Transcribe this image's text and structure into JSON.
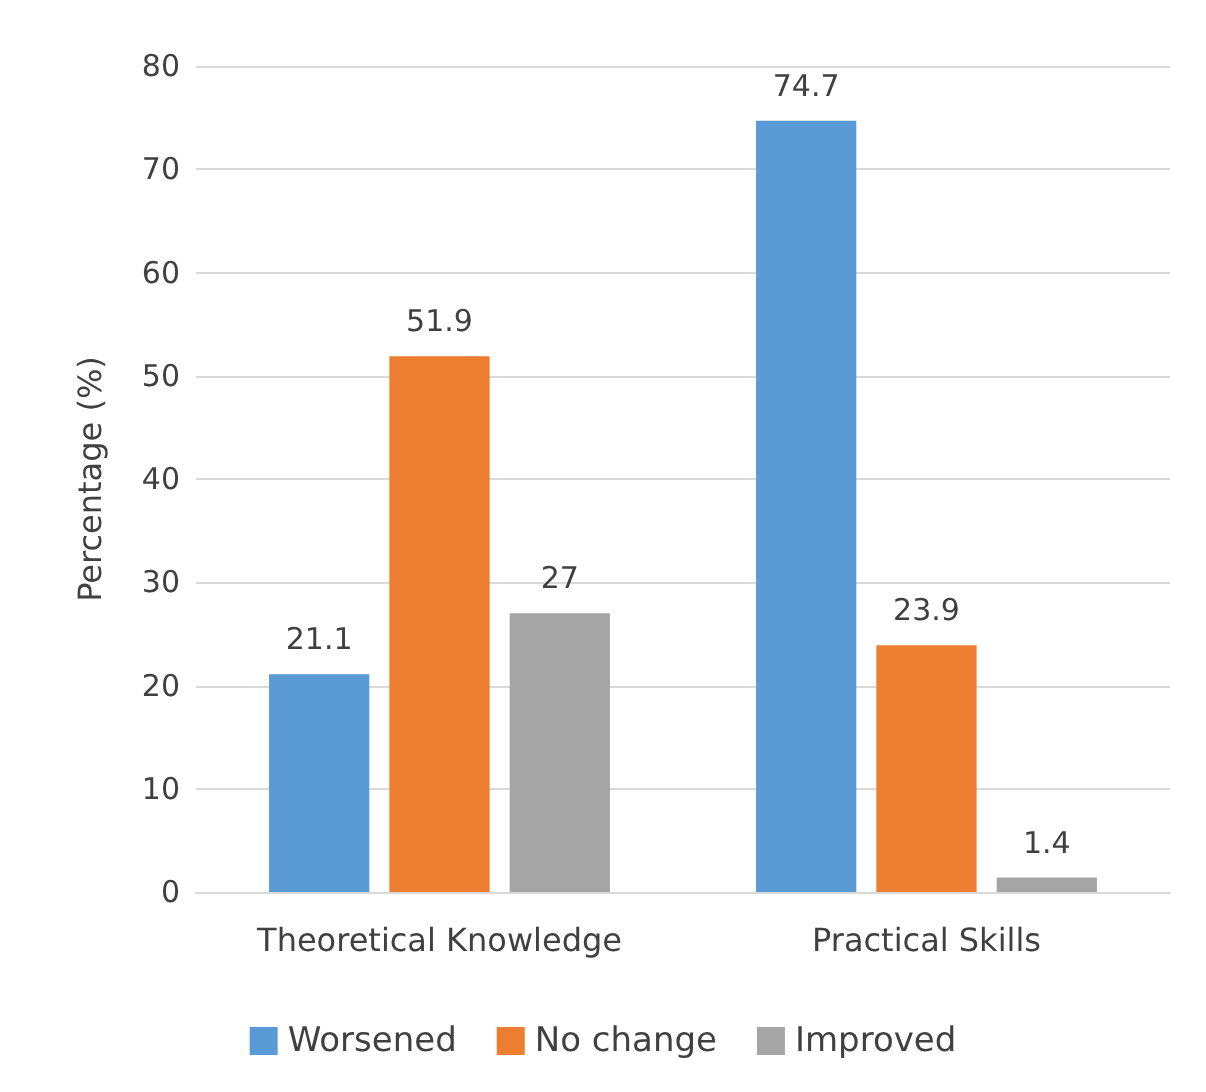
{
  "chart_data": {
    "type": "bar",
    "ylabel": "Percentage (%)",
    "categories": [
      "Theoretical Knowledge",
      "Practical Skills"
    ],
    "series": [
      {
        "name": "Worsened",
        "color": "#5b9bd5",
        "values": [
          21.1,
          74.7
        ]
      },
      {
        "name": "No change",
        "color": "#ed7d31",
        "values": [
          51.9,
          23.9
        ]
      },
      {
        "name": "Improved",
        "color": "#a5a5a5",
        "values": [
          27,
          1.4
        ]
      }
    ],
    "ylim": [
      0,
      80
    ],
    "yticks": [
      0,
      10,
      20,
      30,
      40,
      50,
      60,
      70,
      80
    ],
    "grid": "y",
    "legend": "bottom",
    "data_labels": true
  }
}
